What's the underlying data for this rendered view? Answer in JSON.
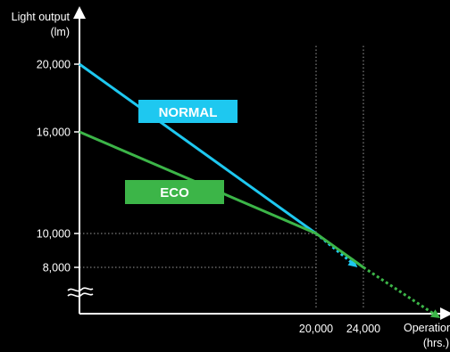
{
  "colors": {
    "background": "#000000",
    "axis": "#ffffff",
    "normal": "#1ec8f0",
    "eco": "#3cb548",
    "grid": "#9a9a9a"
  },
  "chart_data": {
    "type": "line",
    "ylabel_line1": "Light output",
    "ylabel_line2": "(lm)",
    "xlabel_line1": "Operation",
    "xlabel_line2": "(hrs.)",
    "x_ticks": [
      {
        "value": 20000,
        "label": "20,000"
      },
      {
        "value": 24000,
        "label": "24,000"
      }
    ],
    "y_ticks": [
      {
        "value": 20000,
        "label": "20,000"
      },
      {
        "value": 16000,
        "label": "16,000"
      },
      {
        "value": 10000,
        "label": "10,000"
      },
      {
        "value": 8000,
        "label": "8,000"
      }
    ],
    "y_axis_break": true,
    "series": [
      {
        "name": "NORMAL",
        "color": "#1ec8f0",
        "points": [
          [
            0,
            20000
          ],
          [
            20000,
            10000
          ]
        ],
        "projection": [
          [
            20000,
            10000
          ],
          [
            23500,
            8000
          ]
        ]
      },
      {
        "name": "ECO",
        "color": "#3cb548",
        "points": [
          [
            0,
            16000
          ],
          [
            20000,
            10000
          ],
          [
            24000,
            8000
          ]
        ],
        "projection": [
          [
            24000,
            8000
          ],
          [
            30500,
            5000
          ]
        ]
      }
    ]
  }
}
